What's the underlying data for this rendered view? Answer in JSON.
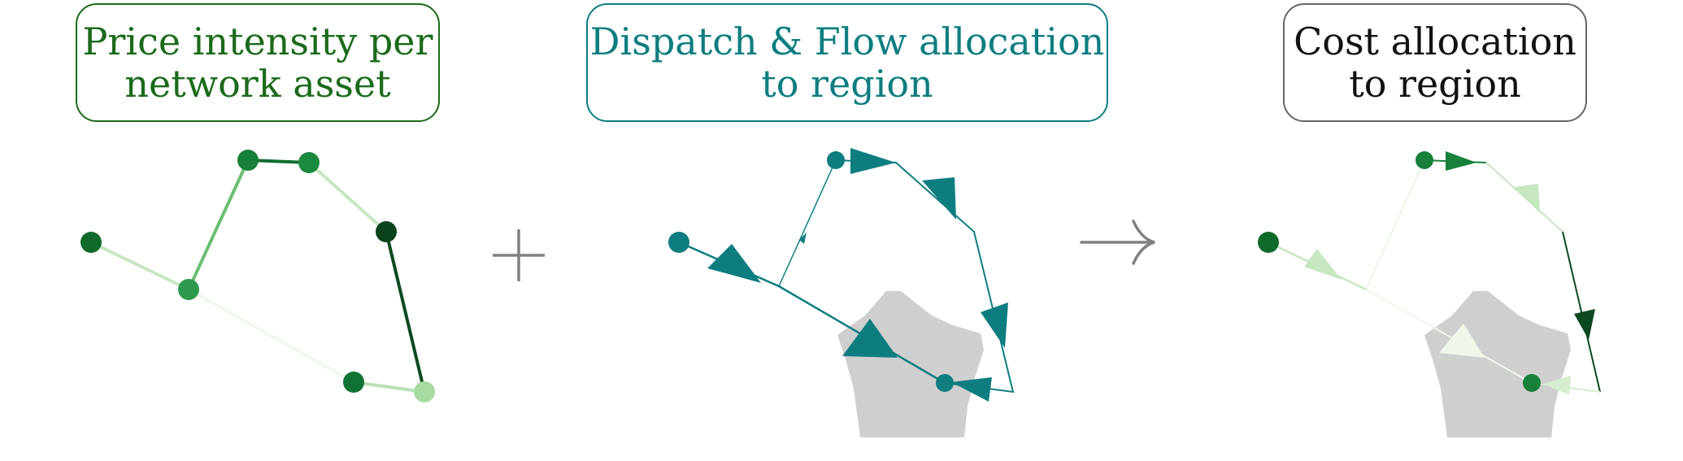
{
  "boxes": {
    "price": {
      "line1": "Price intensity per",
      "line2": "network asset"
    },
    "dispatch": {
      "line1": "Dispatch & Flow allocation",
      "line2": "to region"
    },
    "cost": {
      "line1": "Cost allocation",
      "line2": "to region"
    }
  },
  "colors": {
    "price_border": "#1a6b1a",
    "dispatch": "#0d7d80",
    "cost_border": "#666666",
    "region_fill": "#cfcfcf",
    "operator": "#808080"
  },
  "icons": {
    "plus": "plus-icon",
    "arrow": "right-arrow-icon"
  }
}
